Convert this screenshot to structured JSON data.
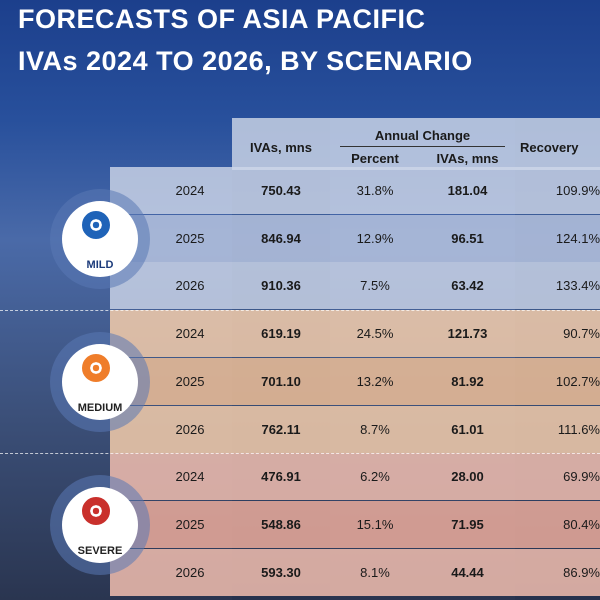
{
  "header": {
    "title": [
      "FORECASTS OF ASIA PACIFIC",
      "IVAs 2024 TO 2026, BY SCENARIO"
    ]
  },
  "table": {
    "columns": {
      "ivas": "IVAs, mns",
      "annual_change": "Annual Change",
      "percent": "Percent",
      "change_ivas": "IVAs, mns",
      "recovery": "Recovery"
    },
    "scenarios": [
      {
        "name": "MILD",
        "rows": [
          [
            "2024",
            "750.43",
            "31.8%",
            "181.04",
            "109.9%"
          ],
          [
            "2025",
            "846.94",
            "12.9%",
            "96.51",
            "124.1%"
          ],
          [
            "2026",
            "910.36",
            "7.5%",
            "63.42",
            "133.4%"
          ]
        ]
      },
      {
        "name": "MEDIUM",
        "rows": [
          [
            "2024",
            "619.19",
            "24.5%",
            "121.73",
            "90.7%"
          ],
          [
            "2025",
            "701.10",
            "13.2%",
            "81.92",
            "102.7%"
          ],
          [
            "2026",
            "762.11",
            "8.7%",
            "61.01",
            "111.6%"
          ]
        ]
      },
      {
        "name": "SEVERE",
        "rows": [
          [
            "2024",
            "476.91",
            "6.2%",
            "28.00",
            "69.9%"
          ],
          [
            "2025",
            "548.86",
            "15.1%",
            "71.95",
            "80.4%"
          ],
          [
            "2026",
            "593.30",
            "8.1%",
            "44.44",
            "86.9%"
          ]
        ]
      }
    ]
  }
}
